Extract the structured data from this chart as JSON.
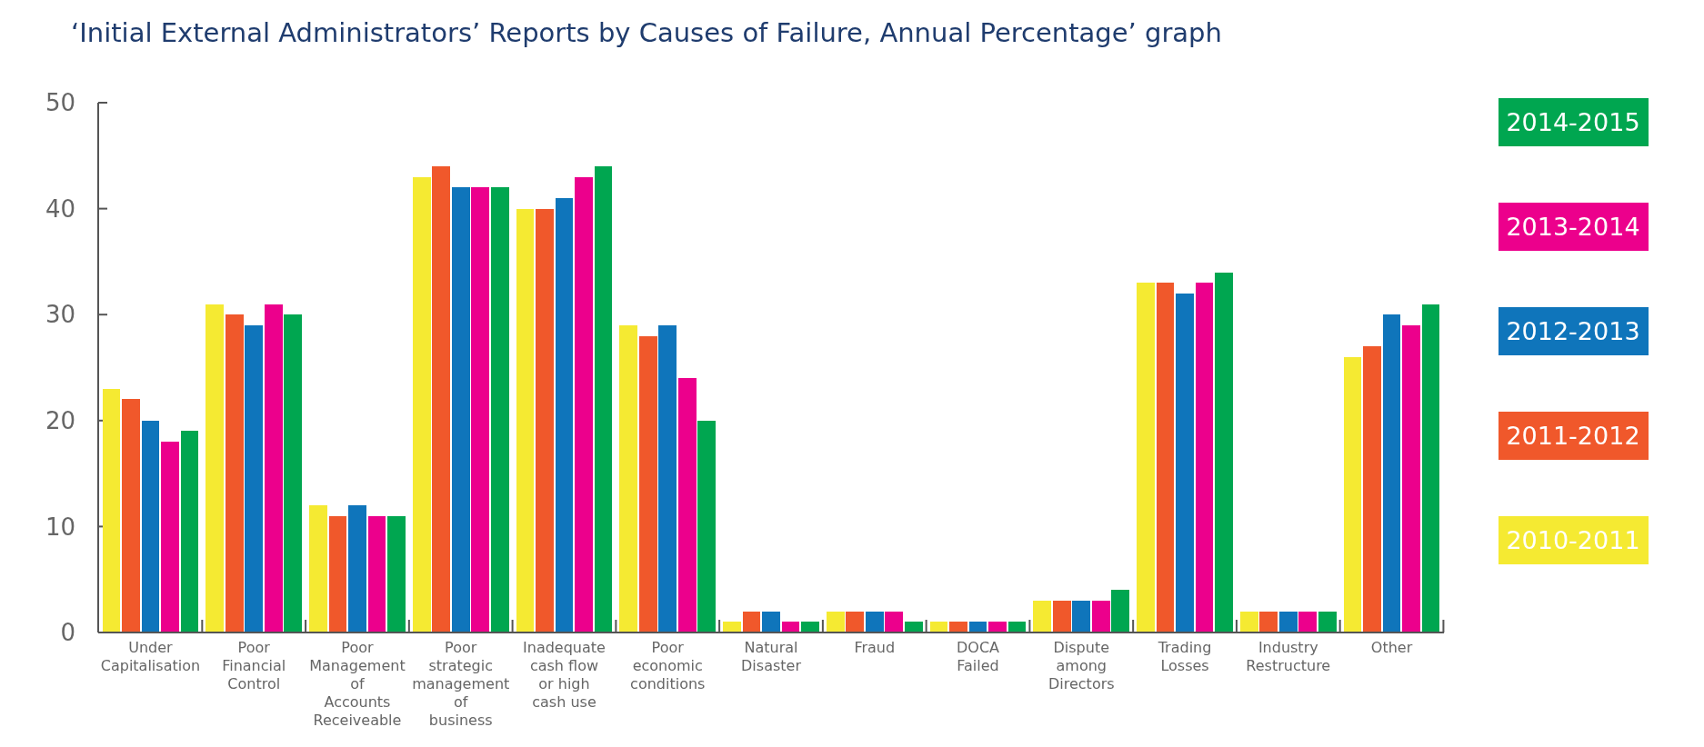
{
  "chart_data": {
    "type": "bar",
    "title": "‘Initial External Administrators’ Reports by Causes of Failure, Annual Percentage’ graph",
    "categories": [
      "Under Capitalisation",
      "Poor Financial Control",
      "Poor Management of Accounts Receiveable",
      "Poor strategic management of business",
      "Inadequate cash flow or high cash use",
      "Poor economic conditions",
      "Natural Disaster",
      "Fraud",
      "DOCA Failed",
      "Dispute among Directors",
      "Trading Losses",
      "Industry Restructure",
      "Other"
    ],
    "series": [
      {
        "name": "2010-2011",
        "color": "#f5ea32",
        "values": [
          23,
          31,
          12,
          43,
          40,
          29,
          1,
          2,
          1,
          3,
          33,
          2,
          26
        ]
      },
      {
        "name": "2011-2012",
        "color": "#f0582b",
        "values": [
          22,
          30,
          11,
          44,
          40,
          28,
          2,
          2,
          1,
          3,
          33,
          2,
          27
        ]
      },
      {
        "name": "2012-2013",
        "color": "#0f75bb",
        "values": [
          20,
          29,
          12,
          42,
          41,
          29,
          2,
          2,
          1,
          3,
          32,
          2,
          30
        ]
      },
      {
        "name": "2013-2014",
        "color": "#ec008c",
        "values": [
          18,
          31,
          11,
          42,
          43,
          24,
          1,
          2,
          1,
          3,
          33,
          2,
          29
        ]
      },
      {
        "name": "2014-2015",
        "color": "#00a650",
        "values": [
          19,
          30,
          11,
          42,
          44,
          20,
          1,
          1,
          1,
          4,
          34,
          2,
          31
        ]
      }
    ],
    "ylim": [
      0,
      50
    ],
    "yticks": [
      0,
      10,
      20,
      30,
      40,
      50
    ],
    "grid": false,
    "legend": "right"
  }
}
